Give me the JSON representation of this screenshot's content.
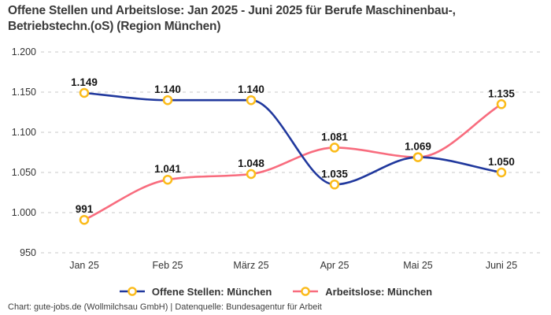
{
  "title": "Offene Stellen und Arbeitslose: Jan 2025 - Juni 2025 für Berufe Maschinenbau-, Betriebstechn.(oS) (Region München)",
  "footer": "Chart: gute-jobs.de (Wollmilchsau GmbH) | Datenquelle: Bundesagentur für Arbeit",
  "colors": {
    "series_offene_stellen": "#20389D",
    "series_arbeitslose": "#F86C7E",
    "marker_ring": "#FBBB1A",
    "marker_fill": "#FFFFFF",
    "grid": "#C9C9C9",
    "title_text": "#3A3A3A",
    "data_label_text": "#161616",
    "axis_text": "#333333"
  },
  "chart_data": {
    "type": "line",
    "categories": [
      "Jan 25",
      "Feb 25",
      "März 25",
      "Apr 25",
      "Mai 25",
      "Juni 25"
    ],
    "series": [
      {
        "name": "Offene Stellen: München",
        "color": "#20389D",
        "values": [
          1149,
          1140,
          1140,
          1035,
          1069,
          1050
        ]
      },
      {
        "name": "Arbeitslose: München",
        "color": "#F86C7E",
        "values": [
          991,
          1041,
          1048,
          1081,
          1069,
          1135
        ]
      }
    ],
    "title": "Offene Stellen und Arbeitslose: Jan 2025 - Juni 2025 für Berufe Maschinenbau-, Betriebstechn.(oS) (Region München)",
    "xlabel": "",
    "ylabel": "",
    "ylim": [
      950,
      1200
    ],
    "yticks": [
      950,
      1000,
      1050,
      1100,
      1150,
      1200
    ],
    "ytick_labels": [
      "950",
      "1.000",
      "1.050",
      "1.100",
      "1.150",
      "1.200"
    ],
    "grid": "horizontal-dashed",
    "legend_position": "bottom-center",
    "marker": "open-circle-gold",
    "number_format": "de-DE",
    "data_labels": [
      "1.149",
      "1.140",
      "1.140",
      "1.035",
      "1.069",
      "1.050",
      "991",
      "1.041",
      "1.048",
      "1.081",
      "1.135"
    ]
  }
}
